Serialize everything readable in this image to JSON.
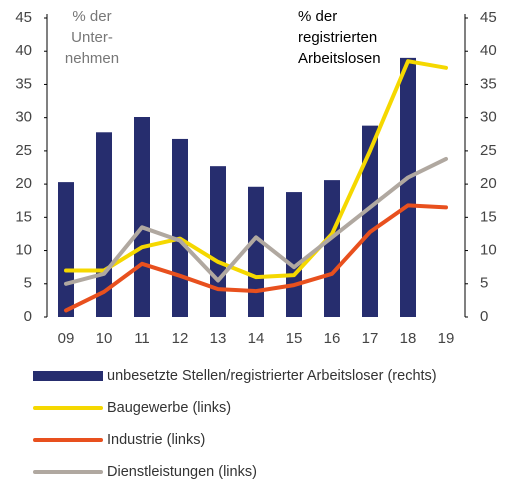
{
  "chart_data": {
    "type": "bar",
    "categories": [
      "09",
      "10",
      "11",
      "12",
      "13",
      "14",
      "15",
      "16",
      "17",
      "18",
      "19"
    ],
    "series": [
      {
        "name": "unbesetzte Stellen/registrierter Arbeitsloser (rechts)",
        "type": "bar",
        "axis": "y2",
        "color": "#262d6e",
        "values": [
          20.3,
          27.8,
          30.1,
          26.8,
          22.7,
          19.6,
          18.8,
          20.6,
          28.8,
          39,
          null
        ]
      },
      {
        "name": "Baugewerbe (links)",
        "type": "line",
        "color": "#f5d800",
        "values": [
          7,
          7,
          10.5,
          11.8,
          8.3,
          6,
          6.3,
          12.5,
          25,
          38.5,
          37.5
        ]
      },
      {
        "name": "Industrie (links)",
        "type": "line",
        "color": "#e8501e",
        "values": [
          1,
          3.8,
          8,
          6.2,
          4.2,
          3.9,
          4.8,
          6.5,
          12.8,
          16.8,
          16.5
        ]
      },
      {
        "name": "Dienstleistungen (links)",
        "type": "line",
        "color": "#b0a8a0",
        "values": [
          5,
          6.5,
          13.5,
          11.5,
          5.5,
          12,
          7.5,
          12,
          16.5,
          21,
          23.8
        ]
      }
    ],
    "ylim": [
      0,
      45
    ],
    "yticks": [
      0,
      5,
      10,
      15,
      20,
      25,
      30,
      35,
      40,
      45
    ],
    "y2lim": [
      0,
      45
    ],
    "y2ticks": [
      0,
      5,
      10,
      15,
      20,
      25,
      30,
      35,
      40,
      45
    ],
    "annotations": [
      {
        "lines": [
          "% der",
          "Unter-",
          "nehmen"
        ]
      },
      {
        "lines": [
          "% der",
          "registrierten",
          "Arbeitslosen"
        ]
      }
    ]
  }
}
